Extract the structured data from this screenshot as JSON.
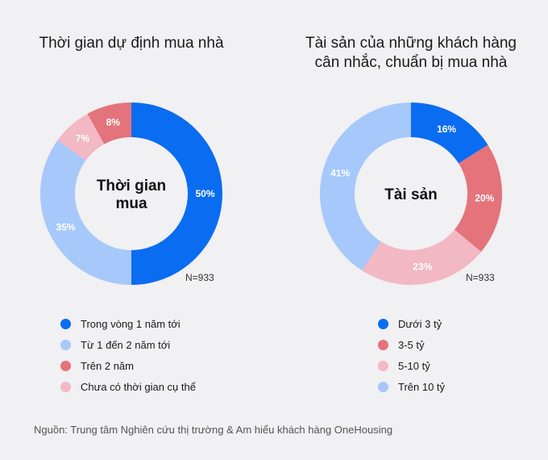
{
  "chart_data": [
    {
      "type": "pie",
      "title": "Thời gian dự định mua nhà",
      "center_label": "Thời gian mua",
      "center_lines": [
        "Thời gian",
        "mua"
      ],
      "n_label": "N=933",
      "categories": [
        "Trong vòng 1 năm tới",
        "Từ 1 đến 2 năm tới",
        "Chưa có thời gian cụ thể",
        "Trên 2 năm"
      ],
      "values": [
        50,
        35,
        7,
        8
      ],
      "value_labels": [
        "50%",
        "35%",
        "7%",
        "8%"
      ],
      "colors": [
        "#0a6cf0",
        "#a6c8fb",
        "#f2b8c4",
        "#e4737b"
      ],
      "legend": [
        {
          "label": "Trong vòng 1 năm tới",
          "color": "#0a6cf0"
        },
        {
          "label": "Từ 1 đến 2 năm tới",
          "color": "#a6c8fb"
        },
        {
          "label": "Trên 2 năm",
          "color": "#e4737b"
        },
        {
          "label": "Chưa có thời gian cụ thể",
          "color": "#f2b8c4"
        }
      ],
      "legend_placement": "bottom"
    },
    {
      "type": "pie",
      "title": "Tài sản của những khách hàng cân nhắc, chuẩn bị mua nhà",
      "title_lines": [
        "Tài sản của những khách hàng",
        "cân nhắc, chuẩn bị mua nhà"
      ],
      "center_label": "Tài sản",
      "center_lines": [
        "Tài sản"
      ],
      "n_label": "N=933",
      "categories": [
        "Dưới 3 tỷ",
        "3-5 tỷ",
        "5-10 tỷ",
        "Trên 10 tỷ"
      ],
      "values": [
        16,
        20,
        23,
        41
      ],
      "value_labels": [
        "16%",
        "20%",
        "23%",
        "41%"
      ],
      "colors": [
        "#0a6cf0",
        "#e4737b",
        "#f2b8c4",
        "#a6c8fb"
      ],
      "legend": [
        {
          "label": "Dưới 3 tỷ",
          "color": "#0a6cf0"
        },
        {
          "label": "3-5 tỷ",
          "color": "#e4737b"
        },
        {
          "label": "5-10 tỷ",
          "color": "#f2b8c4"
        },
        {
          "label": "Trên 10 tỷ",
          "color": "#a6c8fb"
        }
      ],
      "legend_placement": "bottom"
    }
  ],
  "source": "Nguồn: Trung tâm Nghiên cứu thị trường & Am hiểu khách hàng OneHousing"
}
